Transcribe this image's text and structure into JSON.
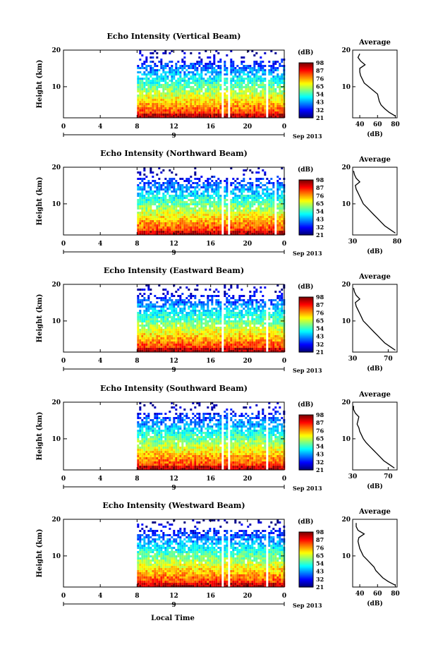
{
  "figure": {
    "xlabel": "Local Time",
    "date_label": "Sep 2013",
    "day_label": "9",
    "colorbar_unit": "(dB)",
    "colorbar_ticks": [
      "21",
      "32",
      "43",
      "54",
      "65",
      "76",
      "87",
      "98"
    ],
    "average_title": "Average",
    "average_xlabel": "(dB)"
  },
  "chart_data": [
    {
      "type": "heatmap",
      "title": "Echo Intensity (Vertical Beam)",
      "ylabel": "Height (km)",
      "x_ticks": [
        "0",
        "4",
        "8",
        "12",
        "16",
        "20",
        "0"
      ],
      "y_ticks": [
        "10",
        "20"
      ],
      "xlim": [
        0,
        24
      ],
      "ylim": [
        1.5,
        20
      ],
      "data_start_hour": 8,
      "gap_hours": [
        [
          17.0,
          17.4
        ],
        [
          17.8,
          18.0
        ],
        [
          21.9,
          22.1
        ]
      ],
      "color_range_db": [
        21,
        98
      ],
      "average": {
        "xlim": [
          32,
          82
        ],
        "xticks": [
          "40",
          "60",
          "80"
        ],
        "height": [
          2,
          3,
          4,
          5,
          6,
          7,
          8,
          9,
          10,
          11,
          12,
          13,
          14,
          15,
          16,
          17,
          18,
          19
        ],
        "db": [
          80,
          73,
          68,
          64,
          62,
          61,
          60,
          55,
          50,
          45,
          43,
          41,
          40,
          40,
          46,
          41,
          38,
          40
        ]
      }
    },
    {
      "type": "heatmap",
      "title": "Echo Intensity (Northward Beam)",
      "ylabel": "Height (km)",
      "x_ticks": [
        "0",
        "4",
        "8",
        "12",
        "16",
        "20",
        "0"
      ],
      "y_ticks": [
        "10",
        "20"
      ],
      "xlim": [
        0,
        24
      ],
      "ylim": [
        1.5,
        20
      ],
      "data_start_hour": 8,
      "gap_hours": [
        [
          17.0,
          17.3
        ],
        [
          17.8,
          18.0
        ],
        [
          22.9,
          23.1
        ]
      ],
      "color_range_db": [
        21,
        98
      ],
      "average": {
        "xlim": [
          30,
          80
        ],
        "xticks": [
          "30",
          "80"
        ],
        "height": [
          2,
          3,
          4,
          5,
          6,
          7,
          8,
          9,
          10,
          11,
          12,
          13,
          14,
          15,
          16,
          17,
          18,
          19
        ],
        "db": [
          78,
          72,
          66,
          62,
          58,
          54,
          50,
          46,
          42,
          40,
          38,
          36,
          34,
          33,
          38,
          34,
          32,
          31
        ]
      }
    },
    {
      "type": "heatmap",
      "title": "Echo Intensity (Eastward Beam)",
      "ylabel": "Height (km)",
      "x_ticks": [
        "0",
        "4",
        "8",
        "12",
        "16",
        "20",
        "0"
      ],
      "y_ticks": [
        "10",
        "20"
      ],
      "xlim": [
        0,
        24
      ],
      "ylim": [
        1.5,
        20
      ],
      "data_start_hour": 8,
      "gap_hours": [
        [
          17.1,
          17.4
        ],
        [
          17.9,
          18.1
        ],
        [
          21.9,
          22.1
        ]
      ],
      "color_range_db": [
        21,
        98
      ],
      "average": {
        "xlim": [
          30,
          80
        ],
        "xticks": [
          "30",
          "70"
        ],
        "height": [
          2,
          3,
          4,
          5,
          6,
          7,
          8,
          9,
          10,
          11,
          12,
          13,
          14,
          15,
          16,
          17,
          18,
          19
        ],
        "db": [
          78,
          72,
          66,
          62,
          58,
          54,
          50,
          46,
          42,
          40,
          38,
          36,
          34,
          33,
          38,
          34,
          32,
          31
        ]
      }
    },
    {
      "type": "heatmap",
      "title": "Echo Intensity (Southward Beam)",
      "ylabel": "Height (km)",
      "x_ticks": [
        "0",
        "4",
        "8",
        "12",
        "16",
        "20",
        "0"
      ],
      "y_ticks": [
        "10",
        "20"
      ],
      "xlim": [
        0,
        24
      ],
      "ylim": [
        1.5,
        20
      ],
      "data_start_hour": 8,
      "gap_hours": [
        [
          17.0,
          17.3
        ],
        [
          17.8,
          18.0
        ],
        [
          21.9,
          22.1
        ]
      ],
      "color_range_db": [
        21,
        98
      ],
      "average": {
        "xlim": [
          30,
          80
        ],
        "xticks": [
          "30",
          "70"
        ],
        "height": [
          2,
          3,
          4,
          5,
          6,
          7,
          8,
          9,
          10,
          11,
          12,
          13,
          14,
          15,
          16,
          17,
          18,
          19
        ],
        "db": [
          77,
          71,
          65,
          61,
          57,
          53,
          49,
          45,
          42,
          40,
          38,
          37,
          35,
          36,
          37,
          33,
          31,
          31
        ]
      }
    },
    {
      "type": "heatmap",
      "title": "Echo Intensity (Westward Beam)",
      "ylabel": "Height (km)",
      "x_ticks": [
        "0",
        "4",
        "8",
        "12",
        "16",
        "20",
        "0"
      ],
      "y_ticks": [
        "10",
        "20"
      ],
      "xlim": [
        0,
        24
      ],
      "ylim": [
        1.5,
        20
      ],
      "data_start_hour": 8,
      "gap_hours": [
        [
          17.0,
          17.3
        ],
        [
          17.8,
          18.0
        ],
        [
          21.9,
          22.1
        ]
      ],
      "color_range_db": [
        21,
        98
      ],
      "average": {
        "xlim": [
          32,
          82
        ],
        "xticks": [
          "40",
          "60",
          "80"
        ],
        "height": [
          2,
          3,
          4,
          5,
          6,
          7,
          8,
          9,
          10,
          11,
          12,
          13,
          14,
          15,
          16,
          17,
          18,
          19
        ],
        "db": [
          80,
          72,
          66,
          62,
          58,
          56,
          52,
          48,
          44,
          42,
          40,
          39,
          38,
          39,
          45,
          38,
          36,
          36
        ]
      }
    }
  ]
}
